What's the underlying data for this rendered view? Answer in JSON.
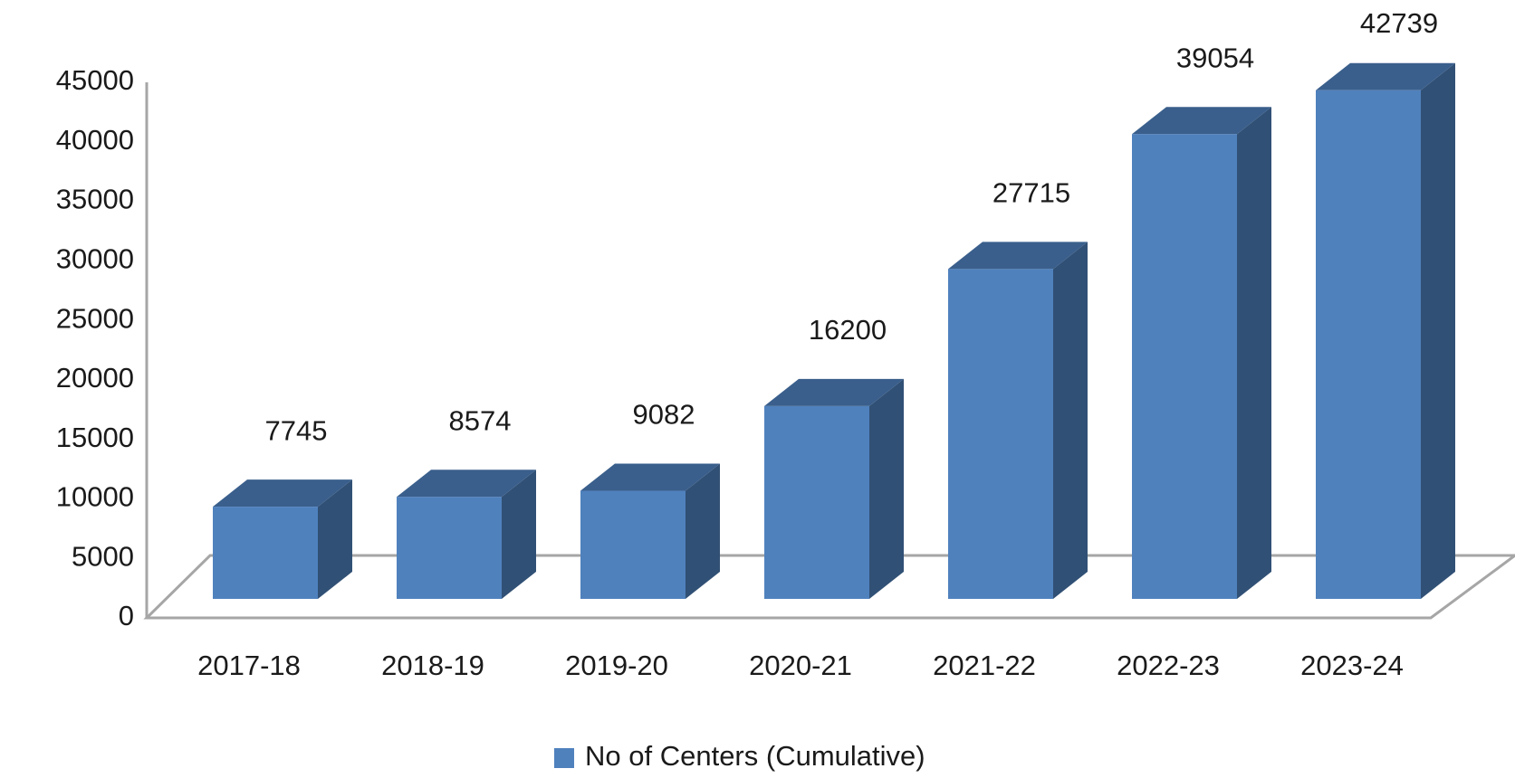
{
  "chart_data": {
    "type": "bar3d",
    "categories": [
      "2017-18",
      "2018-19",
      "2019-20",
      "2020-21",
      "2021-22",
      "2022-23",
      "2023-24"
    ],
    "series": [
      {
        "name": "No of Centers (Cumulative)",
        "color": "#4f81bd",
        "values": [
          7745,
          8574,
          9082,
          16200,
          27715,
          39054,
          42739
        ]
      }
    ],
    "ylim": [
      0,
      45000
    ],
    "yticks": [
      0,
      5000,
      10000,
      15000,
      20000,
      25000,
      30000,
      35000,
      40000,
      45000
    ],
    "grid": false,
    "legend": "bottom"
  }
}
